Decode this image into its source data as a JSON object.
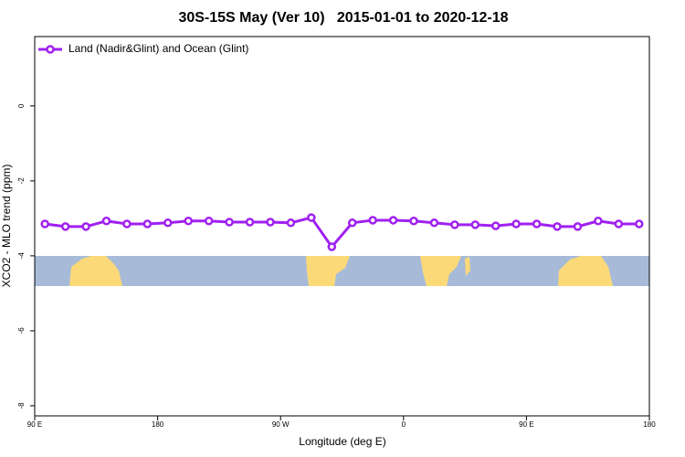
{
  "chart_data": {
    "type": "line",
    "title": "30S-15S May (Ver 10)   2015-01-01 to 2020-12-18",
    "x_label": "Longitude (deg E)",
    "y_label": "XCO2 - MLO trend (ppm)",
    "x": [
      97.5,
      112.5,
      127.5,
      142.5,
      157.5,
      172.5,
      187.5,
      202.5,
      217.5,
      232.5,
      247.5,
      262.5,
      277.5,
      292.5,
      307.5,
      322.5,
      337.5,
      352.5,
      367.5,
      382.5,
      397.5,
      412.5,
      427.5,
      442.5,
      457.5,
      472.5,
      487.5,
      502.5,
      517.5,
      532.5
    ],
    "series": [
      {
        "name": "Land (Nadir&Glint) and Ocean (Glint)",
        "color": "#a020f0",
        "values": [
          -3.15,
          -3.22,
          -3.22,
          -3.07,
          -3.15,
          -3.15,
          -3.12,
          -3.07,
          -3.07,
          -3.1,
          -3.1,
          -3.1,
          -3.12,
          -2.98,
          -3.76,
          -3.12,
          -3.05,
          -3.05,
          -3.07,
          -3.12,
          -3.17,
          -3.17,
          -3.2,
          -3.15,
          -3.15,
          -3.22,
          -3.22,
          -3.07,
          -3.15,
          -3.15
        ]
      }
    ],
    "xlim": [
      90,
      540
    ],
    "xticks": [
      {
        "value": 90,
        "label": "90 E"
      },
      {
        "value": 180,
        "label": "180"
      },
      {
        "value": 270,
        "label": "90 W"
      },
      {
        "value": 360,
        "label": "0"
      },
      {
        "value": 450,
        "label": "90 E"
      },
      {
        "value": 540,
        "label": "180"
      }
    ],
    "ylim": [
      -8.27,
      1.85
    ],
    "yticks": [
      0,
      -2,
      -4,
      -6,
      -8
    ],
    "legend": "top-left"
  }
}
